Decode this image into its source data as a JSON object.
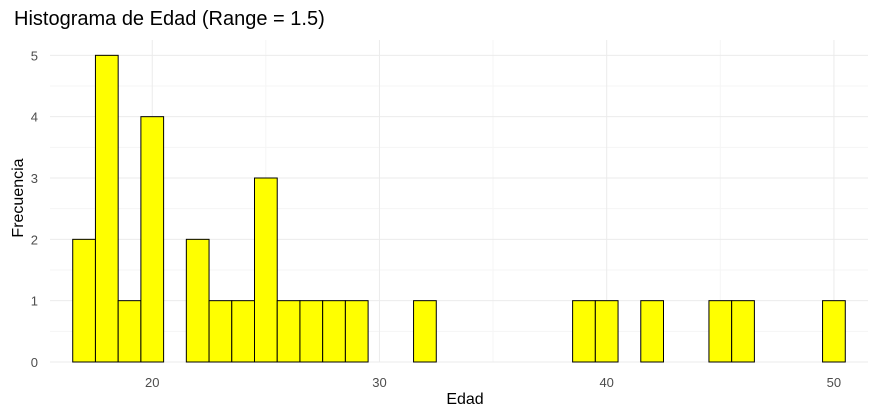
{
  "chart_data": {
    "type": "bar",
    "title": "Histograma de Edad (Range = 1.5)",
    "xlabel": "Edad",
    "ylabel": "Frecuencia",
    "bin_width": 1,
    "bars": [
      {
        "x": 17,
        "count": 2
      },
      {
        "x": 18,
        "count": 5
      },
      {
        "x": 19,
        "count": 1
      },
      {
        "x": 20,
        "count": 4
      },
      {
        "x": 21,
        "count": 0
      },
      {
        "x": 22,
        "count": 2
      },
      {
        "x": 23,
        "count": 1
      },
      {
        "x": 24,
        "count": 1
      },
      {
        "x": 25,
        "count": 3
      },
      {
        "x": 26,
        "count": 1
      },
      {
        "x": 27,
        "count": 1
      },
      {
        "x": 28,
        "count": 1
      },
      {
        "x": 29,
        "count": 1
      },
      {
        "x": 30,
        "count": 0
      },
      {
        "x": 31,
        "count": 0
      },
      {
        "x": 32,
        "count": 1
      },
      {
        "x": 33,
        "count": 0
      },
      {
        "x": 34,
        "count": 0
      },
      {
        "x": 35,
        "count": 0
      },
      {
        "x": 36,
        "count": 0
      },
      {
        "x": 37,
        "count": 0
      },
      {
        "x": 38,
        "count": 0
      },
      {
        "x": 39,
        "count": 1
      },
      {
        "x": 40,
        "count": 1
      },
      {
        "x": 41,
        "count": 0
      },
      {
        "x": 42,
        "count": 1
      },
      {
        "x": 43,
        "count": 0
      },
      {
        "x": 44,
        "count": 0
      },
      {
        "x": 45,
        "count": 1
      },
      {
        "x": 46,
        "count": 1
      },
      {
        "x": 47,
        "count": 0
      },
      {
        "x": 48,
        "count": 0
      },
      {
        "x": 49,
        "count": 0
      },
      {
        "x": 50,
        "count": 1
      }
    ],
    "x_ticks": [
      "20",
      "30",
      "40",
      "50"
    ],
    "y_ticks": [
      "0",
      "1",
      "2",
      "3",
      "4",
      "5"
    ],
    "xlim": [
      15.5,
      51.5
    ],
    "ylim": [
      0,
      5.25
    ],
    "grid": true,
    "fill_color": "#ffff00",
    "edge_color": "#000000"
  }
}
